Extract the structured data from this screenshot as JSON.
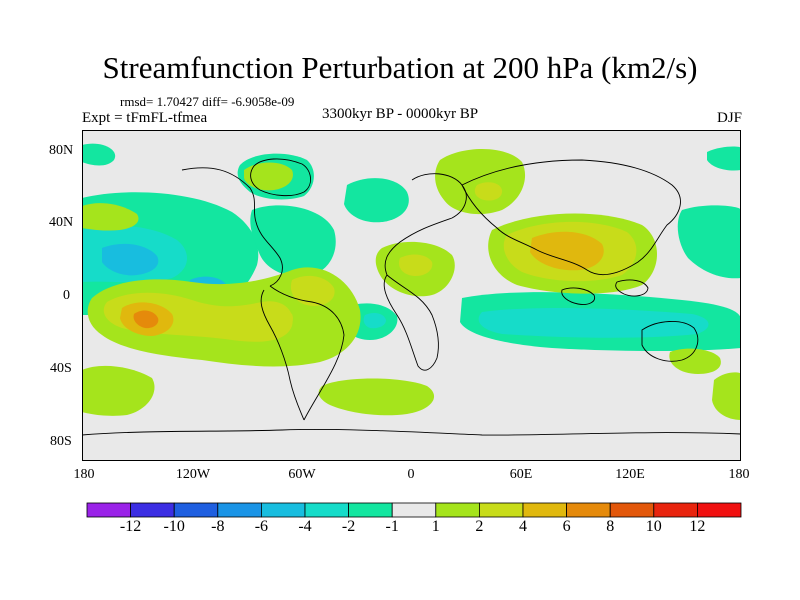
{
  "title": "Streamfunction Perturbation at 200 hPa (km2/s)",
  "stats_text": "rmsd= 1.70427  diff= -6.9058e-09",
  "subtitle": "3300kyr BP - 0000kyr BP",
  "experiment": "Expt = tFmFL-tfmea",
  "season": "DJF",
  "lat_ticks": [
    "80N",
    "40N",
    "0",
    "40S",
    "80S"
  ],
  "lon_ticks": [
    "180",
    "120W",
    "60W",
    "0",
    "60E",
    "120E",
    "180"
  ],
  "colorbar": {
    "labels": [
      "-12",
      "-10",
      "-8",
      "-6",
      "-4",
      "-2",
      "-1",
      "1",
      "2",
      "4",
      "6",
      "8",
      "10",
      "12"
    ],
    "colors": [
      "#9a22e8",
      "#3c2ee3",
      "#1f5fe0",
      "#1a94e6",
      "#18bddf",
      "#16dcc9",
      "#13e6a0",
      "#e9e9e9",
      "#a5e41c",
      "#c8dc1a",
      "#e0b80e",
      "#e58a0b",
      "#e2570a",
      "#e8240e",
      "#f01010"
    ]
  },
  "map": {
    "background": "#e9e9e9",
    "coastline_color": "#000000"
  }
}
